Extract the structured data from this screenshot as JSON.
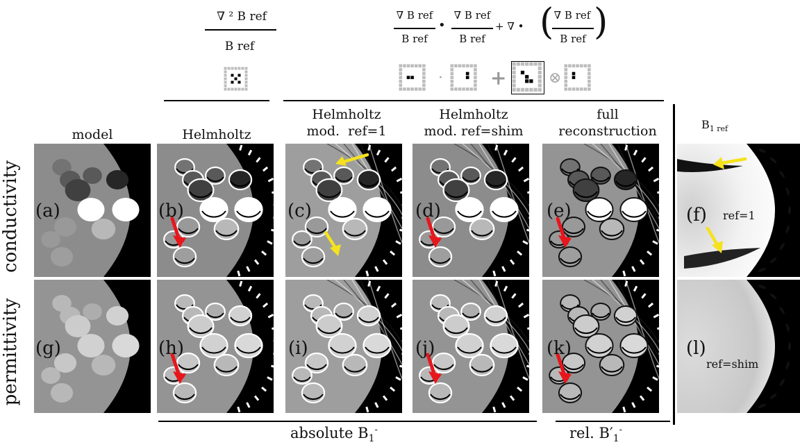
{
  "equations": {
    "helmholtz": {
      "numerator": "∇ ² B ref",
      "denominator": "B ref"
    },
    "modified": {
      "t1_num": "∇ B ref",
      "t1_den": "B ref",
      "dot": "•",
      "t2_num": "∇ B ref",
      "t2_den": "B ref",
      "plus_nabla": "+ ∇ •",
      "t3_num": "∇ B ref",
      "t3_den": "B ref",
      "lparen": "(",
      "rparen": ")"
    },
    "stencil_ops": {
      "dot": "·",
      "plus": "+",
      "otimes": "⊗"
    }
  },
  "columns": {
    "model": "model",
    "helmholtz": "Helmholtz",
    "mod_ref1_a": "Helmholtz",
    "mod_ref1_b": "mod.  ref=1",
    "mod_shim_a": "Helmholtz",
    "mod_shim_b": "mod. ref=shim",
    "full_a": "full",
    "full_b": "reconstruction",
    "b1ref": "B",
    "b1ref_sub": "1 ref"
  },
  "rows": {
    "conductivity": "conductivity",
    "permittivity": "permittivity"
  },
  "panels": {
    "a": "(a)",
    "b": "(b)",
    "c": "(c)",
    "d": "(d)",
    "e": "(e)",
    "f": "(f)",
    "g": "(g)",
    "h": "(h)",
    "i": "(i)",
    "j": "(j)",
    "k": "(k)",
    "l": "(l)"
  },
  "annotations": {
    "f_ref": "ref=1",
    "l_ref": "ref=shim"
  },
  "footer": {
    "absolute": "absolute B",
    "absolute_sub": "1",
    "absolute_sup": "-",
    "relative": "rel. B′",
    "relative_sub": "1",
    "relative_sup": "-"
  },
  "colors": {
    "red_arrow": "#e8161b",
    "yellow_arrow": "#f5e21c",
    "phantom_gray": "#8a8a8a",
    "background_black": "#000000"
  }
}
